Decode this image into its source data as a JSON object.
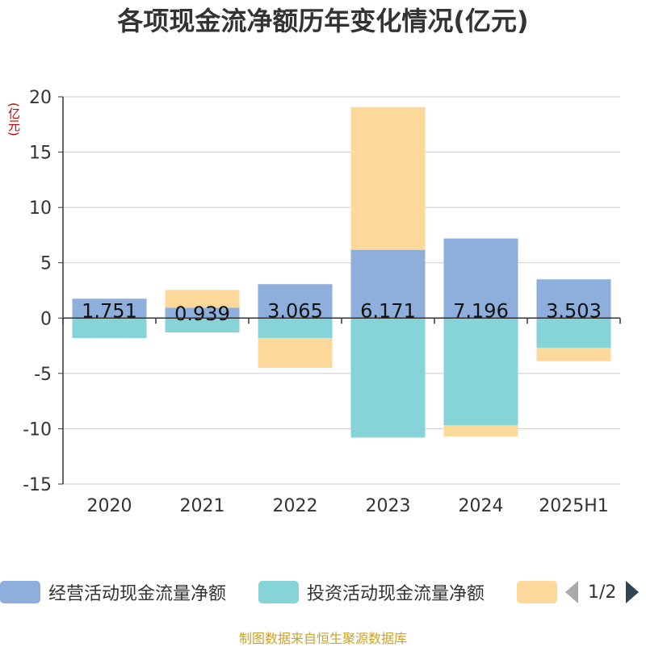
{
  "title": "各项现金流净额历年变化情况(亿元)",
  "unit_label": "(亿元)",
  "source": "制图数据来自恒生聚源数据库",
  "pager": {
    "text": "1/2"
  },
  "colors": {
    "operating": "#8eaedb",
    "investing": "#86d4d8",
    "financing": "#fdd89b",
    "axis": "#333333",
    "grid": "#cccccc"
  },
  "legend": [
    {
      "label": "经营活动现金流量净额",
      "color": "#8eaedb"
    },
    {
      "label": "投资活动现金流量净额",
      "color": "#86d4d8"
    },
    {
      "label": "",
      "color": "#fdd89b"
    }
  ],
  "chart_data": {
    "type": "bar",
    "stacked": true,
    "categories": [
      "2020",
      "2021",
      "2022",
      "2023",
      "2024",
      "2025H1"
    ],
    "ylim": [
      -15,
      20
    ],
    "yticks": [
      20,
      15,
      10,
      5,
      0,
      -5,
      -10,
      -15
    ],
    "grid": true,
    "legend_position": "bottom",
    "series": [
      {
        "name": "经营活动现金流量净额",
        "values": [
          1.751,
          0.939,
          3.065,
          6.171,
          7.196,
          3.503
        ],
        "labels": [
          "1.751",
          "0.939",
          "3.065",
          "6.171",
          "7.196",
          "3.503"
        ]
      },
      {
        "name": "投资活动现金流量净额",
        "values": [
          -1.8,
          -1.3,
          -1.8,
          -10.8,
          -9.7,
          -2.7
        ]
      },
      {
        "values": [
          0,
          1.6,
          -2.7,
          12.9,
          -1.0,
          -1.2
        ]
      }
    ]
  }
}
